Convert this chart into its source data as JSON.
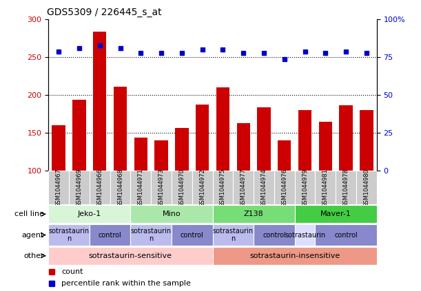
{
  "title": "GDS5309 / 226445_s_at",
  "samples": [
    "GSM1044967",
    "GSM1044969",
    "GSM1044966",
    "GSM1044968",
    "GSM1044971",
    "GSM1044973",
    "GSM1044970",
    "GSM1044972",
    "GSM1044975",
    "GSM1044977",
    "GSM1044974",
    "GSM1044976",
    "GSM1044979",
    "GSM1044981",
    "GSM1044978",
    "GSM1044980"
  ],
  "counts": [
    160,
    194,
    284,
    211,
    144,
    140,
    157,
    188,
    210,
    163,
    184,
    140,
    180,
    165,
    187,
    180
  ],
  "percentiles": [
    79,
    81,
    83,
    81,
    78,
    78,
    78,
    80,
    80,
    78,
    78,
    74,
    79,
    78,
    79,
    78
  ],
  "bar_color": "#cc0000",
  "dot_color": "#0000cc",
  "ylim_left": [
    100,
    300
  ],
  "ylim_right": [
    0,
    100
  ],
  "yticks_left": [
    100,
    150,
    200,
    250,
    300
  ],
  "yticks_right": [
    0,
    25,
    50,
    75,
    100
  ],
  "ytick_labels_right": [
    "0",
    "25",
    "50",
    "75",
    "100%"
  ],
  "dotted_line_values": [
    150,
    200,
    250
  ],
  "cell_lines": [
    {
      "label": "Jeko-1",
      "start": 0,
      "end": 4,
      "color": "#d8f5d8"
    },
    {
      "label": "Mino",
      "start": 4,
      "end": 8,
      "color": "#aae8aa"
    },
    {
      "label": "Z138",
      "start": 8,
      "end": 12,
      "color": "#77dd77"
    },
    {
      "label": "Maver-1",
      "start": 12,
      "end": 16,
      "color": "#44cc44"
    }
  ],
  "agents": [
    {
      "label": "sotrastaurin\nn",
      "start": 0,
      "end": 2,
      "color": "#bbbbee"
    },
    {
      "label": "control",
      "start": 2,
      "end": 4,
      "color": "#8888cc"
    },
    {
      "label": "sotrastaurin\nn",
      "start": 4,
      "end": 6,
      "color": "#bbbbee"
    },
    {
      "label": "control",
      "start": 6,
      "end": 8,
      "color": "#8888cc"
    },
    {
      "label": "sotrastaurin\nn",
      "start": 8,
      "end": 10,
      "color": "#bbbbee"
    },
    {
      "label": "control",
      "start": 10,
      "end": 12,
      "color": "#8888cc"
    },
    {
      "label": "sotrastaurin",
      "start": 12,
      "end": 13,
      "color": "#ddddff"
    },
    {
      "label": "control",
      "start": 13,
      "end": 16,
      "color": "#8888cc"
    }
  ],
  "others": [
    {
      "label": "sotrastaurin-sensitive",
      "start": 0,
      "end": 8,
      "color": "#ffcccc"
    },
    {
      "label": "sotrastaurin-insensitive",
      "start": 8,
      "end": 16,
      "color": "#ee9988"
    }
  ],
  "row_labels": [
    "cell line",
    "agent",
    "other"
  ],
  "sample_bg_color": "#cccccc",
  "legend_items": [
    {
      "label": "count",
      "color": "#cc0000"
    },
    {
      "label": "percentile rank within the sample",
      "color": "#0000cc"
    }
  ]
}
